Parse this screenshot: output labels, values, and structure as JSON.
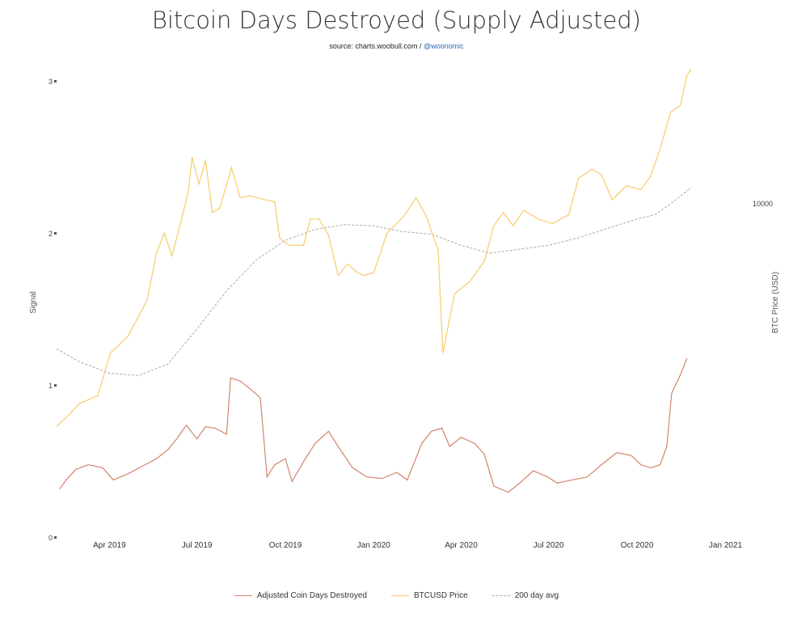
{
  "title": "Bitcoin Days Destroyed (Supply Adjusted)",
  "subtitle": {
    "source": "source: charts.woobull.com / ",
    "handle": "@woonomic"
  },
  "chart_data": {
    "type": "line",
    "x_range": [
      "2019-02-05",
      "2021-01-25"
    ],
    "x_ticks": [
      "Apr 2019",
      "Jul 2019",
      "Oct 2019",
      "Jan 2020",
      "Apr 2020",
      "Jul 2020",
      "Oct 2020",
      "Jan 2021"
    ],
    "y_left": {
      "label": "Signal",
      "range": [
        0,
        3
      ],
      "ticks": [
        "0",
        "1",
        "2",
        "3"
      ]
    },
    "y_right": {
      "label": "BTC Price (USD)",
      "scale": "log",
      "tick_labels": [
        "10000"
      ]
    },
    "legend_position": "bottom",
    "series": [
      {
        "name": "Adjusted Coin Days Destroyed",
        "axis": "left",
        "color": "#d4836a",
        "points": [
          [
            "2019-02-08",
            0.32
          ],
          [
            "2019-02-15",
            0.38
          ],
          [
            "2019-02-25",
            0.45
          ],
          [
            "2019-03-10",
            0.48
          ],
          [
            "2019-03-25",
            0.46
          ],
          [
            "2019-04-05",
            0.38
          ],
          [
            "2019-04-20",
            0.42
          ],
          [
            "2019-05-05",
            0.47
          ],
          [
            "2019-05-20",
            0.52
          ],
          [
            "2019-06-01",
            0.58
          ],
          [
            "2019-06-10",
            0.65
          ],
          [
            "2019-06-20",
            0.74
          ],
          [
            "2019-07-01",
            0.65
          ],
          [
            "2019-07-10",
            0.73
          ],
          [
            "2019-07-20",
            0.72
          ],
          [
            "2019-08-01",
            0.68
          ],
          [
            "2019-08-05",
            1.05
          ],
          [
            "2019-08-15",
            1.03
          ],
          [
            "2019-08-25",
            0.98
          ],
          [
            "2019-09-05",
            0.92
          ],
          [
            "2019-09-12",
            0.4
          ],
          [
            "2019-09-20",
            0.48
          ],
          [
            "2019-10-01",
            0.52
          ],
          [
            "2019-10-08",
            0.37
          ],
          [
            "2019-10-20",
            0.5
          ],
          [
            "2019-11-01",
            0.62
          ],
          [
            "2019-11-15",
            0.7
          ],
          [
            "2019-11-25",
            0.6
          ],
          [
            "2019-12-10",
            0.46
          ],
          [
            "2019-12-25",
            0.4
          ],
          [
            "2020-01-10",
            0.39
          ],
          [
            "2020-01-25",
            0.43
          ],
          [
            "2020-02-05",
            0.38
          ],
          [
            "2020-02-20",
            0.62
          ],
          [
            "2020-03-01",
            0.7
          ],
          [
            "2020-03-12",
            0.72
          ],
          [
            "2020-03-20",
            0.6
          ],
          [
            "2020-04-01",
            0.66
          ],
          [
            "2020-04-15",
            0.62
          ],
          [
            "2020-04-25",
            0.55
          ],
          [
            "2020-05-05",
            0.34
          ],
          [
            "2020-05-20",
            0.3
          ],
          [
            "2020-06-01",
            0.36
          ],
          [
            "2020-06-15",
            0.44
          ],
          [
            "2020-06-30",
            0.4
          ],
          [
            "2020-07-10",
            0.36
          ],
          [
            "2020-07-25",
            0.38
          ],
          [
            "2020-08-10",
            0.4
          ],
          [
            "2020-08-25",
            0.48
          ],
          [
            "2020-09-10",
            0.56
          ],
          [
            "2020-09-25",
            0.54
          ],
          [
            "2020-10-05",
            0.48
          ],
          [
            "2020-10-15",
            0.46
          ],
          [
            "2020-10-25",
            0.48
          ],
          [
            "2020-11-01",
            0.6
          ],
          [
            "2020-11-06",
            0.95
          ],
          [
            "2020-11-15",
            1.07
          ],
          [
            "2020-11-22",
            1.18
          ]
        ]
      },
      {
        "name": "BTCUSD Price",
        "axis": "right",
        "color": "#f5cc6a",
        "points": [
          [
            "2019-02-05",
            3450
          ],
          [
            "2019-02-15",
            3600
          ],
          [
            "2019-03-01",
            3850
          ],
          [
            "2019-03-20",
            4000
          ],
          [
            "2019-04-02",
            4900
          ],
          [
            "2019-04-20",
            5300
          ],
          [
            "2019-05-10",
            6300
          ],
          [
            "2019-05-20",
            7900
          ],
          [
            "2019-05-28",
            8700
          ],
          [
            "2019-06-05",
            7800
          ],
          [
            "2019-06-15",
            9300
          ],
          [
            "2019-06-22",
            10600
          ],
          [
            "2019-06-26",
            12500
          ],
          [
            "2019-07-03",
            11000
          ],
          [
            "2019-07-10",
            12300
          ],
          [
            "2019-07-17",
            9600
          ],
          [
            "2019-07-25",
            9800
          ],
          [
            "2019-08-06",
            11900
          ],
          [
            "2019-08-15",
            10300
          ],
          [
            "2019-08-25",
            10400
          ],
          [
            "2019-09-10",
            10200
          ],
          [
            "2019-09-20",
            10100
          ],
          [
            "2019-09-25",
            8500
          ],
          [
            "2019-10-05",
            8200
          ],
          [
            "2019-10-20",
            8200
          ],
          [
            "2019-10-27",
            9300
          ],
          [
            "2019-11-05",
            9300
          ],
          [
            "2019-11-15",
            8600
          ],
          [
            "2019-11-25",
            7100
          ],
          [
            "2019-12-05",
            7500
          ],
          [
            "2019-12-15",
            7200
          ],
          [
            "2019-12-22",
            7100
          ],
          [
            "2020-01-01",
            7200
          ],
          [
            "2020-01-15",
            8700
          ],
          [
            "2020-02-01",
            9400
          ],
          [
            "2020-02-14",
            10300
          ],
          [
            "2020-02-25",
            9400
          ],
          [
            "2020-03-08",
            8000
          ],
          [
            "2020-03-13",
            4900
          ],
          [
            "2020-03-25",
            6500
          ],
          [
            "2020-04-10",
            6900
          ],
          [
            "2020-04-25",
            7600
          ],
          [
            "2020-05-05",
            9000
          ],
          [
            "2020-05-15",
            9600
          ],
          [
            "2020-05-25",
            9000
          ],
          [
            "2020-06-05",
            9700
          ],
          [
            "2020-06-20",
            9300
          ],
          [
            "2020-07-05",
            9100
          ],
          [
            "2020-07-22",
            9500
          ],
          [
            "2020-08-01",
            11300
          ],
          [
            "2020-08-15",
            11800
          ],
          [
            "2020-08-25",
            11500
          ],
          [
            "2020-09-05",
            10200
          ],
          [
            "2020-09-20",
            10900
          ],
          [
            "2020-10-05",
            10700
          ],
          [
            "2020-10-15",
            11400
          ],
          [
            "2020-10-25",
            13000
          ],
          [
            "2020-11-05",
            15500
          ],
          [
            "2020-11-15",
            16000
          ],
          [
            "2020-11-22",
            18500
          ],
          [
            "2020-11-26",
            19000
          ]
        ]
      },
      {
        "name": "200 day avg",
        "axis": "right",
        "color": "#aaaaaa",
        "dashed": true,
        "points": [
          [
            "2019-02-05",
            5000
          ],
          [
            "2019-03-01",
            4700
          ],
          [
            "2019-04-01",
            4450
          ],
          [
            "2019-05-01",
            4400
          ],
          [
            "2019-06-01",
            4650
          ],
          [
            "2019-07-01",
            5500
          ],
          [
            "2019-08-01",
            6600
          ],
          [
            "2019-09-01",
            7650
          ],
          [
            "2019-10-01",
            8400
          ],
          [
            "2019-11-01",
            8850
          ],
          [
            "2019-12-01",
            9050
          ],
          [
            "2020-01-01",
            9000
          ],
          [
            "2020-02-01",
            8750
          ],
          [
            "2020-03-01",
            8650
          ],
          [
            "2020-04-01",
            8200
          ],
          [
            "2020-05-01",
            7900
          ],
          [
            "2020-06-01",
            8050
          ],
          [
            "2020-07-01",
            8200
          ],
          [
            "2020-08-01",
            8500
          ],
          [
            "2020-09-01",
            8900
          ],
          [
            "2020-10-01",
            9300
          ],
          [
            "2020-10-20",
            9500
          ],
          [
            "2020-11-05",
            10000
          ],
          [
            "2020-11-26",
            10800
          ]
        ]
      }
    ]
  }
}
